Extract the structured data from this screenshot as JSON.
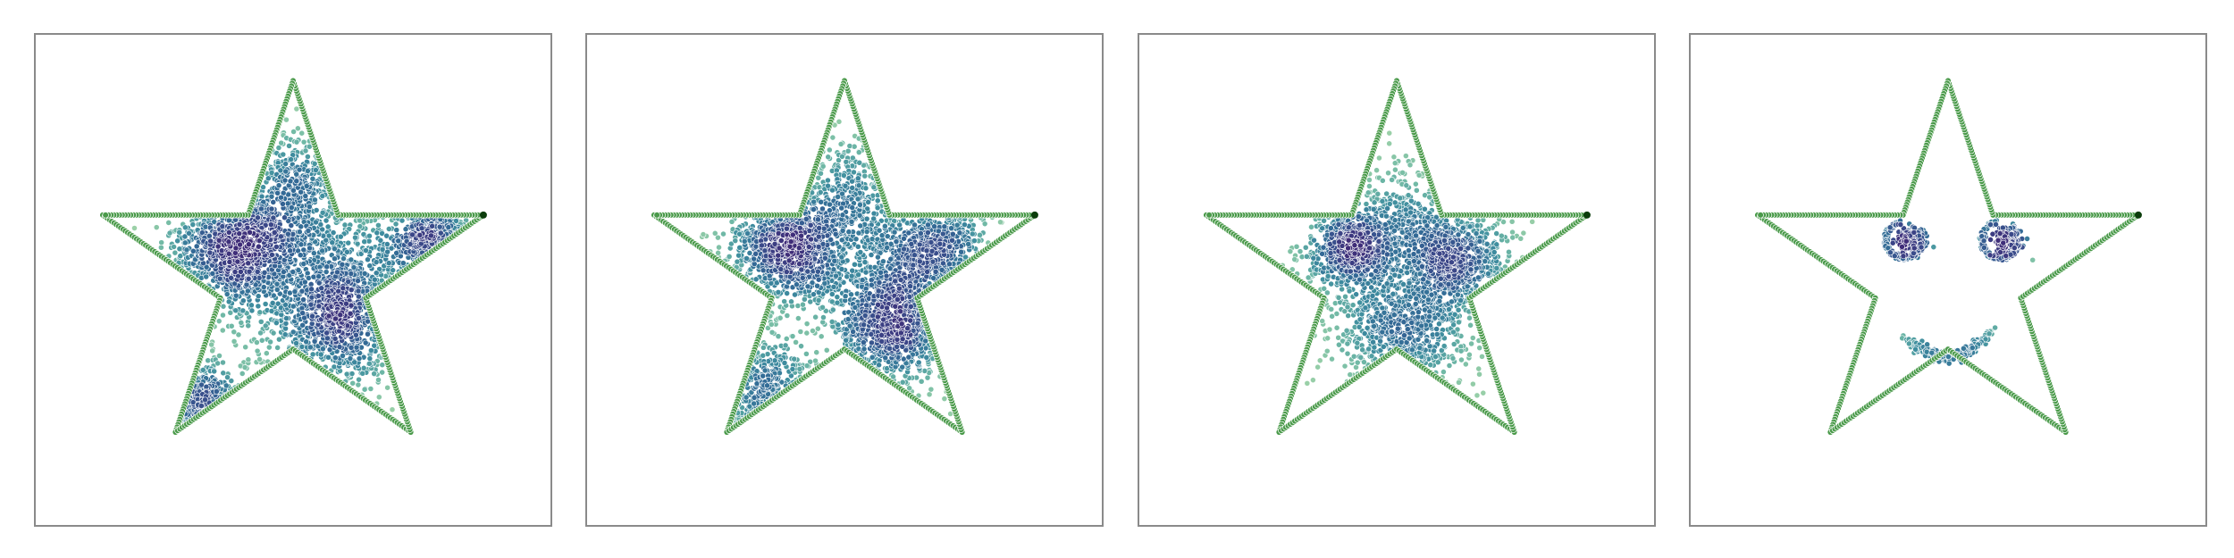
{
  "chart_data": [
    {
      "type": "scatter",
      "xlim": [
        -1.25,
        1.25
      ],
      "ylim": [
        -1.25,
        1.2
      ],
      "grid": false,
      "boundary": {
        "shape": "five-point star",
        "outer_radius": 1.0,
        "inner_radius": 0.382,
        "color": "#4a9a4a",
        "marker_points_per_edge": 52,
        "start_point": [
          0.951,
          0.309
        ],
        "start_point_color": "#0b3d0b"
      },
      "colormap": [
        "#9fd3a8",
        "#6fb8a6",
        "#3f8e9f",
        "#336a96",
        "#3a4a8a",
        "#3f2c78"
      ],
      "clusters": [
        {
          "center": [
            -0.28,
            0.15
          ],
          "spread": 0.16,
          "count": 900
        },
        {
          "center": [
            0.26,
            -0.2
          ],
          "spread": 0.17,
          "count": 850
        },
        {
          "center": [
            0.7,
            0.16
          ],
          "spread": 0.12,
          "count": 350
        },
        {
          "center": [
            0.02,
            0.42
          ],
          "spread": 0.2,
          "count": 450
        },
        {
          "center": [
            -0.5,
            -0.72
          ],
          "spread": 0.13,
          "count": 260
        },
        {
          "center": [
            0.05,
            0.0
          ],
          "spread": 0.38,
          "count": 450
        }
      ]
    },
    {
      "type": "scatter",
      "xlim": [
        -1.25,
        1.25
      ],
      "ylim": [
        -1.25,
        1.2
      ],
      "grid": false,
      "boundary": {
        "shape": "five-point star",
        "outer_radius": 1.0,
        "inner_radius": 0.382,
        "color": "#4a9a4a",
        "marker_points_per_edge": 52,
        "start_point": [
          0.951,
          0.309
        ],
        "start_point_color": "#0b3d0b"
      },
      "colormap": [
        "#9fd3a8",
        "#6fb8a6",
        "#3f8e9f",
        "#336a96",
        "#3a4a8a",
        "#3f2c78"
      ],
      "clusters": [
        {
          "center": [
            -0.28,
            0.15
          ],
          "spread": 0.14,
          "count": 800
        },
        {
          "center": [
            0.25,
            -0.25
          ],
          "spread": 0.15,
          "count": 800
        },
        {
          "center": [
            0.45,
            0.12
          ],
          "spread": 0.14,
          "count": 500
        },
        {
          "center": [
            0.05,
            0.4
          ],
          "spread": 0.18,
          "count": 350
        },
        {
          "center": [
            -0.4,
            -0.65
          ],
          "spread": 0.14,
          "count": 250
        },
        {
          "center": [
            0.05,
            -0.05
          ],
          "spread": 0.35,
          "count": 350
        }
      ]
    },
    {
      "type": "scatter",
      "xlim": [
        -1.25,
        1.25
      ],
      "ylim": [
        -1.25,
        1.2
      ],
      "grid": false,
      "boundary": {
        "shape": "five-point star",
        "outer_radius": 1.0,
        "inner_radius": 0.382,
        "color": "#4a9a4a",
        "marker_points_per_edge": 52,
        "start_point": [
          0.951,
          0.309
        ],
        "start_point_color": "#0b3d0b"
      },
      "colormap": [
        "#9fd3a8",
        "#6fb8a6",
        "#3f8e9f",
        "#336a96",
        "#3a4a8a",
        "#3f2c78"
      ],
      "clusters": [
        {
          "center": [
            -0.22,
            0.15
          ],
          "spread": 0.1,
          "count": 650
        },
        {
          "center": [
            0.28,
            0.08
          ],
          "spread": 0.13,
          "count": 650
        },
        {
          "center": [
            0.02,
            -0.3
          ],
          "spread": 0.16,
          "count": 600
        },
        {
          "center": [
            0.05,
            0.3
          ],
          "spread": 0.14,
          "count": 250
        },
        {
          "center": [
            0.05,
            0.0
          ],
          "spread": 0.26,
          "count": 350
        }
      ]
    },
    {
      "type": "scatter",
      "xlim": [
        -1.25,
        1.25
      ],
      "ylim": [
        -1.25,
        1.2
      ],
      "grid": false,
      "boundary": {
        "shape": "five-point star",
        "outer_radius": 1.0,
        "inner_radius": 0.382,
        "color": "#4a9a4a",
        "marker_points_per_edge": 52,
        "start_point": [
          0.951,
          0.309
        ],
        "start_point_color": "#0b3d0b"
      },
      "colormap": [
        "#9fd3a8",
        "#6fb8a6",
        "#3f8e9f",
        "#336a96",
        "#3a4a8a",
        "#3f2c78"
      ],
      "smiley": {
        "left_eye_center": [
          -0.22,
          0.18
        ],
        "right_eye_center": [
          0.26,
          0.18
        ],
        "eye_ring_radius": 0.09,
        "eye_core_spread": 0.035,
        "mouth_center_x": 0.0,
        "mouth_curve_y": [
          -0.42,
          -0.3
        ],
        "mouth_half_width": 0.22,
        "count_per_eye": 300,
        "count_mouth": 220
      }
    }
  ]
}
